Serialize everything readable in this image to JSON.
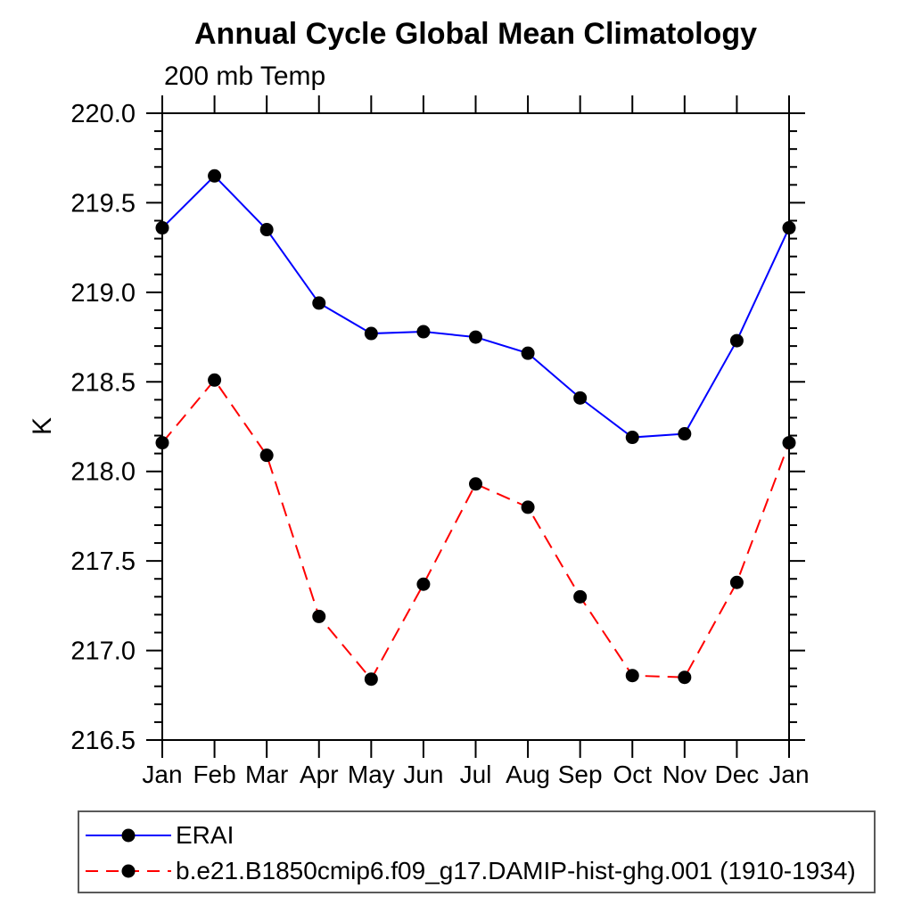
{
  "header": {
    "title": "Annual Cycle Global Mean Climatology",
    "subtitle": "200 mb Temp"
  },
  "axes": {
    "y_axis_title": "K",
    "y_tick_labels": [
      "220.0",
      "219.5",
      "219.0",
      "218.5",
      "218.0",
      "217.5",
      "217.0",
      "216.5"
    ],
    "x_tick_labels": [
      "Jan",
      "Feb",
      "Mar",
      "Apr",
      "May",
      "Jun",
      "Jul",
      "Aug",
      "Sep",
      "Oct",
      "Nov",
      "Dec",
      "Jan"
    ]
  },
  "colors": {
    "axis": "#000000",
    "marker": "#000000",
    "series_erai": "#0000ff",
    "series_model": "#ff0000"
  },
  "chart_data": {
    "type": "line",
    "title": "Annual Cycle Global Mean Climatology",
    "subtitle": "200 mb Temp",
    "xlabel": "",
    "ylabel": "K",
    "categories": [
      "Jan",
      "Feb",
      "Mar",
      "Apr",
      "May",
      "Jun",
      "Jul",
      "Aug",
      "Sep",
      "Oct",
      "Nov",
      "Dec",
      "Jan"
    ],
    "ylim": [
      216.5,
      220.0
    ],
    "ytick_major_step": 0.5,
    "ytick_minor_step": 0.1,
    "grid": false,
    "legend_position": "bottom-left-box",
    "marker": {
      "shape": "filled-circle",
      "color": "#000000",
      "radius": 7.5
    },
    "series": [
      {
        "name": "ERAI",
        "color": "#0000ff",
        "line_style": "solid",
        "values": [
          219.36,
          219.65,
          219.35,
          218.94,
          218.77,
          218.78,
          218.75,
          218.66,
          218.41,
          218.19,
          218.21,
          218.73,
          219.36
        ]
      },
      {
        "name": "b.e21.B1850cmip6.f09_g17.DAMIP-hist-ghg.001 (1910-1934)",
        "color": "#ff0000",
        "line_style": "dashed",
        "values": [
          218.16,
          218.51,
          218.09,
          217.19,
          216.84,
          217.37,
          217.93,
          217.8,
          217.3,
          216.86,
          216.85,
          217.38,
          218.16
        ]
      }
    ]
  }
}
